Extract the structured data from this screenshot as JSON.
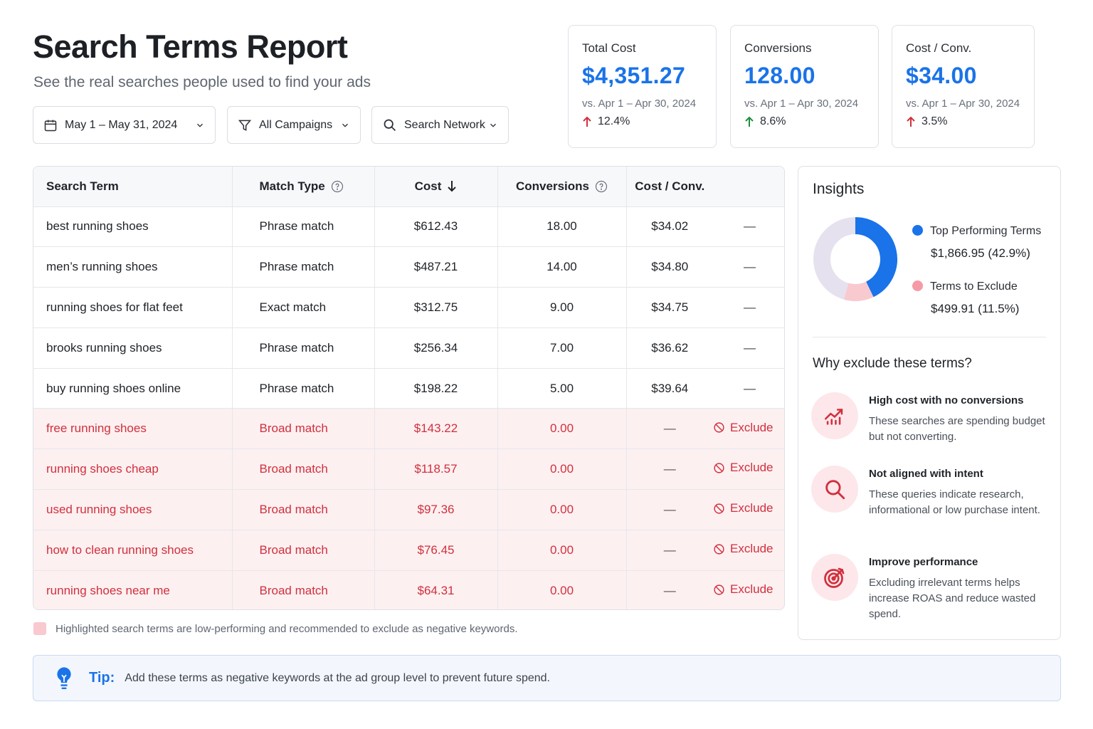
{
  "header": {
    "title": "Search Terms Report",
    "subtitle": "See the real searches people used to find your ads"
  },
  "filters": {
    "date_range": "May 1 – May 31, 2024",
    "campaigns": "All Campaigns",
    "network": "Search Network"
  },
  "kpis": [
    {
      "label": "Total Cost",
      "value": "$4,351.27",
      "compare": "vs. Apr 1 – Apr 30, 2024",
      "change": "12.4%",
      "direction": "up",
      "color": "#d0303d"
    },
    {
      "label": "Conversions",
      "value": "128.00",
      "compare": "vs. Apr 1 – Apr 30, 2024",
      "change": "8.6%",
      "direction": "up",
      "color": "#1e8e3e"
    },
    {
      "label": "Cost / Conv.",
      "value": "$34.00",
      "compare": "vs. Apr 1 – Apr 30, 2024",
      "change": "3.5%",
      "direction": "up",
      "color": "#d0303d"
    }
  ],
  "table": {
    "headers": {
      "term": "Search Term",
      "match": "Match Type",
      "cost": "Cost",
      "conversions": "Conversions",
      "cpc": "Cost / Conv."
    },
    "exclude_label": "Exclude",
    "dash": "—",
    "rows": [
      {
        "term": "best running shoes",
        "match": "Phrase match",
        "cost": "$612.43",
        "conversions": "18.00",
        "cpc": "$34.02"
      },
      {
        "term": "men’s running shoes",
        "match": "Phrase match",
        "cost": "$487.21",
        "conversions": "14.00",
        "cpc": "$34.80"
      },
      {
        "term": "running shoes for flat feet",
        "match": "Exact match",
        "cost": "$312.75",
        "conversions": "9.00",
        "cpc": "$34.75"
      },
      {
        "term": "brooks running shoes",
        "match": "Phrase match",
        "cost": "$256.34",
        "conversions": "7.00",
        "cpc": "$36.62"
      },
      {
        "term": "buy running shoes online",
        "match": "Phrase match",
        "cost": "$198.22",
        "conversions": "5.00",
        "cpc": "$39.64"
      },
      {
        "term": "free running shoes",
        "match": "Broad match",
        "cost": "$143.22",
        "conversions": "0.00",
        "cpc": "—"
      },
      {
        "term": "running shoes cheap",
        "match": "Broad match",
        "cost": "$118.57",
        "conversions": "0.00",
        "cpc": "—"
      },
      {
        "term": "used running shoes",
        "match": "Broad match",
        "cost": "$97.36",
        "conversions": "0.00",
        "cpc": "—"
      },
      {
        "term": "how to clean running shoes",
        "match": "Broad match",
        "cost": "$76.45",
        "conversions": "0.00",
        "cpc": "—"
      },
      {
        "term": "running shoes near me",
        "match": "Broad match",
        "cost": "$64.31",
        "conversions": "0.00",
        "cpc": "—"
      }
    ]
  },
  "legend_note": "Highlighted search terms are low-performing and recommended to exclude as negative keywords.",
  "insights": {
    "title": "Insights",
    "donut": {
      "segments": [
        {
          "name": "Top Performing Terms",
          "value": 42.9,
          "color": "#1a73e8"
        },
        {
          "name": "Terms to Exclude",
          "value": 11.5,
          "color": "#f8c9cf"
        },
        {
          "name": "",
          "value": 45.6,
          "color": "#e6e1ee"
        }
      ]
    },
    "legend": [
      {
        "label": "Top Performing Terms",
        "value": "$1,866.95 (42.9%)",
        "color": "#1a73e8"
      },
      {
        "label": "Terms to Exclude",
        "value": "$499.91 (11.5%)",
        "color": "#f59aa6"
      }
    ],
    "why_title": "Why exclude these terms?",
    "reasons": [
      {
        "title": "High cost with no conversions",
        "text": "These searches are spending budget but not converting.",
        "icon": "chart-icon"
      },
      {
        "title": "Not aligned with intent",
        "text": "These queries indicate research, informational or low purchase intent.",
        "icon": "search-icon"
      },
      {
        "title": "Improve performance",
        "text": "Excluding irrelevant terms helps increase ROAS and reduce wasted spend.",
        "icon": "target-icon"
      }
    ]
  },
  "tip": {
    "label": "Tip:",
    "text": "Add these terms as negative keywords at the ad group level to prevent future spend."
  }
}
